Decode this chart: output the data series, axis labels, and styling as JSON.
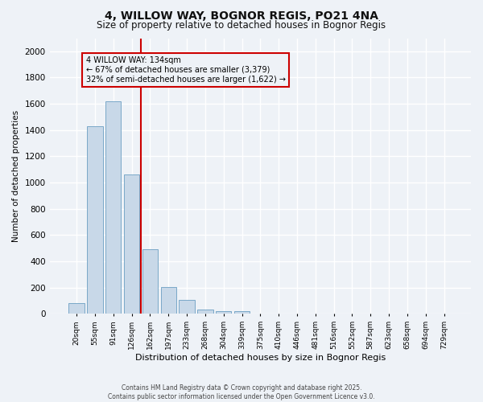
{
  "title1": "4, WILLOW WAY, BOGNOR REGIS, PO21 4NA",
  "title2": "Size of property relative to detached houses in Bognor Regis",
  "xlabel": "Distribution of detached houses by size in Bognor Regis",
  "ylabel": "Number of detached properties",
  "categories": [
    "20sqm",
    "55sqm",
    "91sqm",
    "126sqm",
    "162sqm",
    "197sqm",
    "233sqm",
    "268sqm",
    "304sqm",
    "339sqm",
    "375sqm",
    "410sqm",
    "446sqm",
    "481sqm",
    "516sqm",
    "552sqm",
    "587sqm",
    "623sqm",
    "658sqm",
    "694sqm",
    "729sqm"
  ],
  "values": [
    80,
    1430,
    1620,
    1060,
    490,
    205,
    105,
    35,
    22,
    18,
    0,
    0,
    0,
    0,
    0,
    0,
    0,
    0,
    0,
    0,
    0
  ],
  "bar_color": "#c8d8e8",
  "bar_edge_color": "#7aa8c8",
  "vline_color": "#cc0000",
  "annotation_title": "4 WILLOW WAY: 134sqm",
  "annotation_line1": "← 67% of detached houses are smaller (3,379)",
  "annotation_line2": "32% of semi-detached houses are larger (1,622) →",
  "annotation_box_color": "#cc0000",
  "ylim": [
    0,
    2100
  ],
  "yticks": [
    0,
    200,
    400,
    600,
    800,
    1000,
    1200,
    1400,
    1600,
    1800,
    2000
  ],
  "background_color": "#eef2f7",
  "grid_color": "#ffffff",
  "footer1": "Contains HM Land Registry data © Crown copyright and database right 2025.",
  "footer2": "Contains public sector information licensed under the Open Government Licence v3.0."
}
